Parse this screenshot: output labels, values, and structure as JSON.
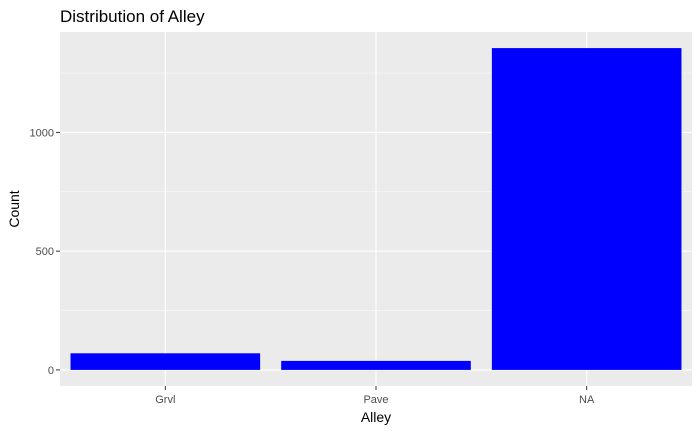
{
  "chart_data": {
    "type": "bar",
    "title": "Distribution of Alley",
    "xlabel": "Alley",
    "ylabel": "Count",
    "categories": [
      "Grvl",
      "Pave",
      "NA"
    ],
    "values": [
      70,
      38,
      1355
    ],
    "ylim": [
      -67.75,
      1422.75
    ],
    "yticks": [
      0,
      500,
      1000
    ],
    "grid": true,
    "bar_color": "#0000ff",
    "panel_background": "#ebebeb"
  }
}
